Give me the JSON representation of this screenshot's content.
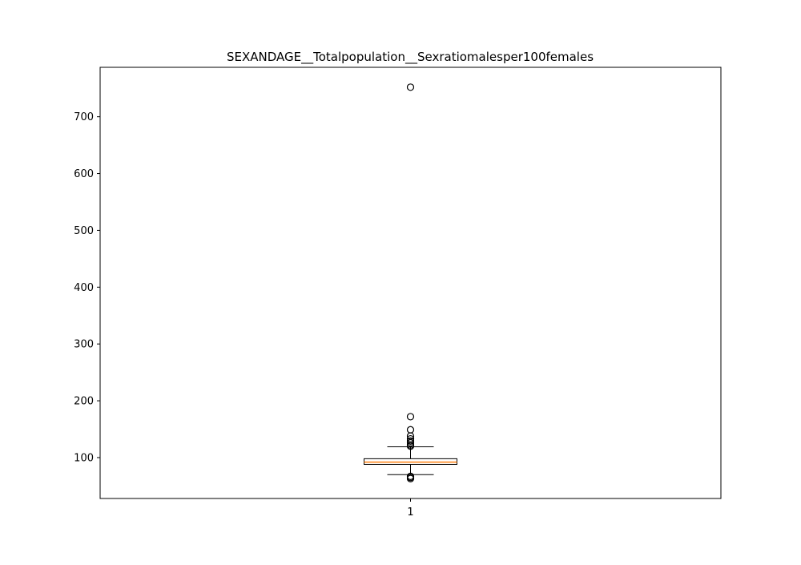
{
  "chart_data": {
    "type": "box",
    "title": "SEXANDAGE__Totalpopulation__Sexratiomalesper100females",
    "xlabel": "",
    "ylabel": "",
    "categories": [
      "1"
    ],
    "ylim": [
      28,
      787
    ],
    "yticks": [
      100,
      200,
      300,
      400,
      500,
      600,
      700
    ],
    "grid": false,
    "boxes": [
      {
        "category": "1",
        "whisker_low": 70,
        "q1": 88,
        "median": 92,
        "q3": 98,
        "whisker_high": 119,
        "fliers": [
          752,
          172,
          149,
          138,
          133,
          129,
          126,
          122,
          120,
          67,
          65,
          63
        ]
      }
    ],
    "colors": {
      "box": "#000000",
      "median": "#ff7f0e",
      "flier": "#000000"
    }
  }
}
